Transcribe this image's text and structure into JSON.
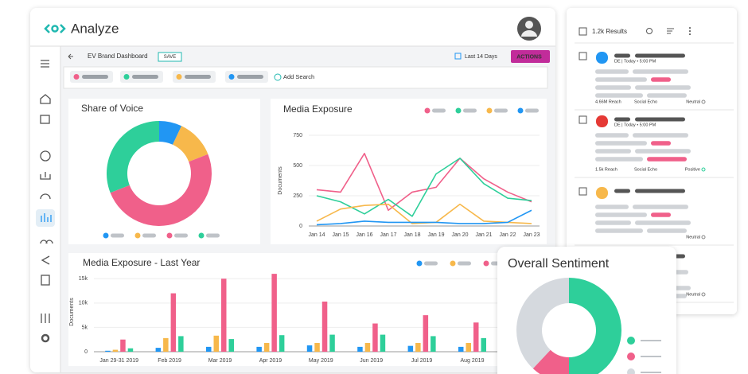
{
  "header": {
    "logo": "Analyze"
  },
  "toolbar": {
    "dashboard": "EV Brand Dashboard",
    "save": "SAVE",
    "range": "Last 14 Days",
    "actions": "ACTIONS",
    "add_search": "Add Search"
  },
  "chart_data": [
    {
      "type": "pie",
      "donut": true,
      "title": "Share of Voice",
      "values": [
        7,
        12,
        50,
        31
      ],
      "colors": [
        "#2196f3",
        "#f7b84b",
        "#f0608a",
        "#2ecf9a"
      ]
    },
    {
      "type": "line",
      "title": "Media Exposure",
      "y_label": "Documents",
      "categories": [
        "Jan 14",
        "Jan 15",
        "Jan 16",
        "Jan 17",
        "Jan 18",
        "Jan 19",
        "Jan 20",
        "Jan 21",
        "Jan 22",
        "Jan 23"
      ],
      "series": [
        {
          "color": "#f0608a",
          "values": [
            300,
            280,
            600,
            130,
            280,
            320,
            560,
            390,
            280,
            200
          ]
        },
        {
          "color": "#2ecf9a",
          "values": [
            250,
            200,
            100,
            220,
            80,
            430,
            560,
            350,
            230,
            210
          ]
        },
        {
          "color": "#f7b84b",
          "values": [
            40,
            140,
            170,
            180,
            20,
            30,
            180,
            40,
            30,
            20
          ]
        },
        {
          "color": "#2196f3",
          "values": [
            10,
            20,
            40,
            30,
            30,
            30,
            20,
            20,
            30,
            130
          ]
        }
      ],
      "ylim": [
        0,
        750
      ],
      "yticks": [
        0,
        250,
        500,
        750
      ]
    },
    {
      "type": "bar",
      "title": "Media Exposure - Last Year",
      "y_label": "Documents",
      "categories": [
        "Jan 29-31 2019",
        "Feb 2019",
        "Mar 2019",
        "Apr 2019",
        "May 2019",
        "Jun 2019",
        "Jul 2019",
        "Aug 2019"
      ],
      "series": [
        {
          "color": "#2196f3",
          "values": [
            200,
            800,
            1000,
            1000,
            1300,
            1000,
            1200,
            1000
          ]
        },
        {
          "color": "#f7b84b",
          "values": [
            400,
            2800,
            3300,
            1800,
            1800,
            1800,
            1800,
            1800
          ]
        },
        {
          "color": "#f0608a",
          "values": [
            2500,
            12000,
            15000,
            16000,
            10300,
            5800,
            7500,
            6000
          ]
        },
        {
          "color": "#2ecf9a",
          "values": [
            700,
            3200,
            2600,
            3400,
            3500,
            3500,
            3200,
            2800
          ]
        }
      ],
      "ylim": [
        0,
        17000
      ],
      "yticks": [
        0,
        {
          "value": 5000,
          "label": "5k"
        },
        {
          "value": 10000,
          "label": "10k"
        },
        {
          "value": 15000,
          "label": "15k"
        }
      ]
    },
    {
      "type": "pie",
      "donut": true,
      "title": "Overall Sentiment",
      "values": [
        50,
        12,
        38
      ],
      "colors": [
        "#2ecf9a",
        "#f0608a",
        "#d5d9de"
      ]
    }
  ],
  "results": {
    "count": "1.2k Results",
    "items": [
      {
        "meta": "DE | Today • 5:00 PM",
        "reach": "4.66M Reach",
        "source": "Social Echo",
        "sentiment": "Neutral"
      },
      {
        "meta": "DE | Today • 5:00 PM",
        "reach": "1.5k Reach",
        "source": "Social Echo",
        "sentiment": "Positive"
      },
      {
        "sentiment": "Neutral"
      },
      {
        "sentiment": "Neutral"
      }
    ]
  }
}
